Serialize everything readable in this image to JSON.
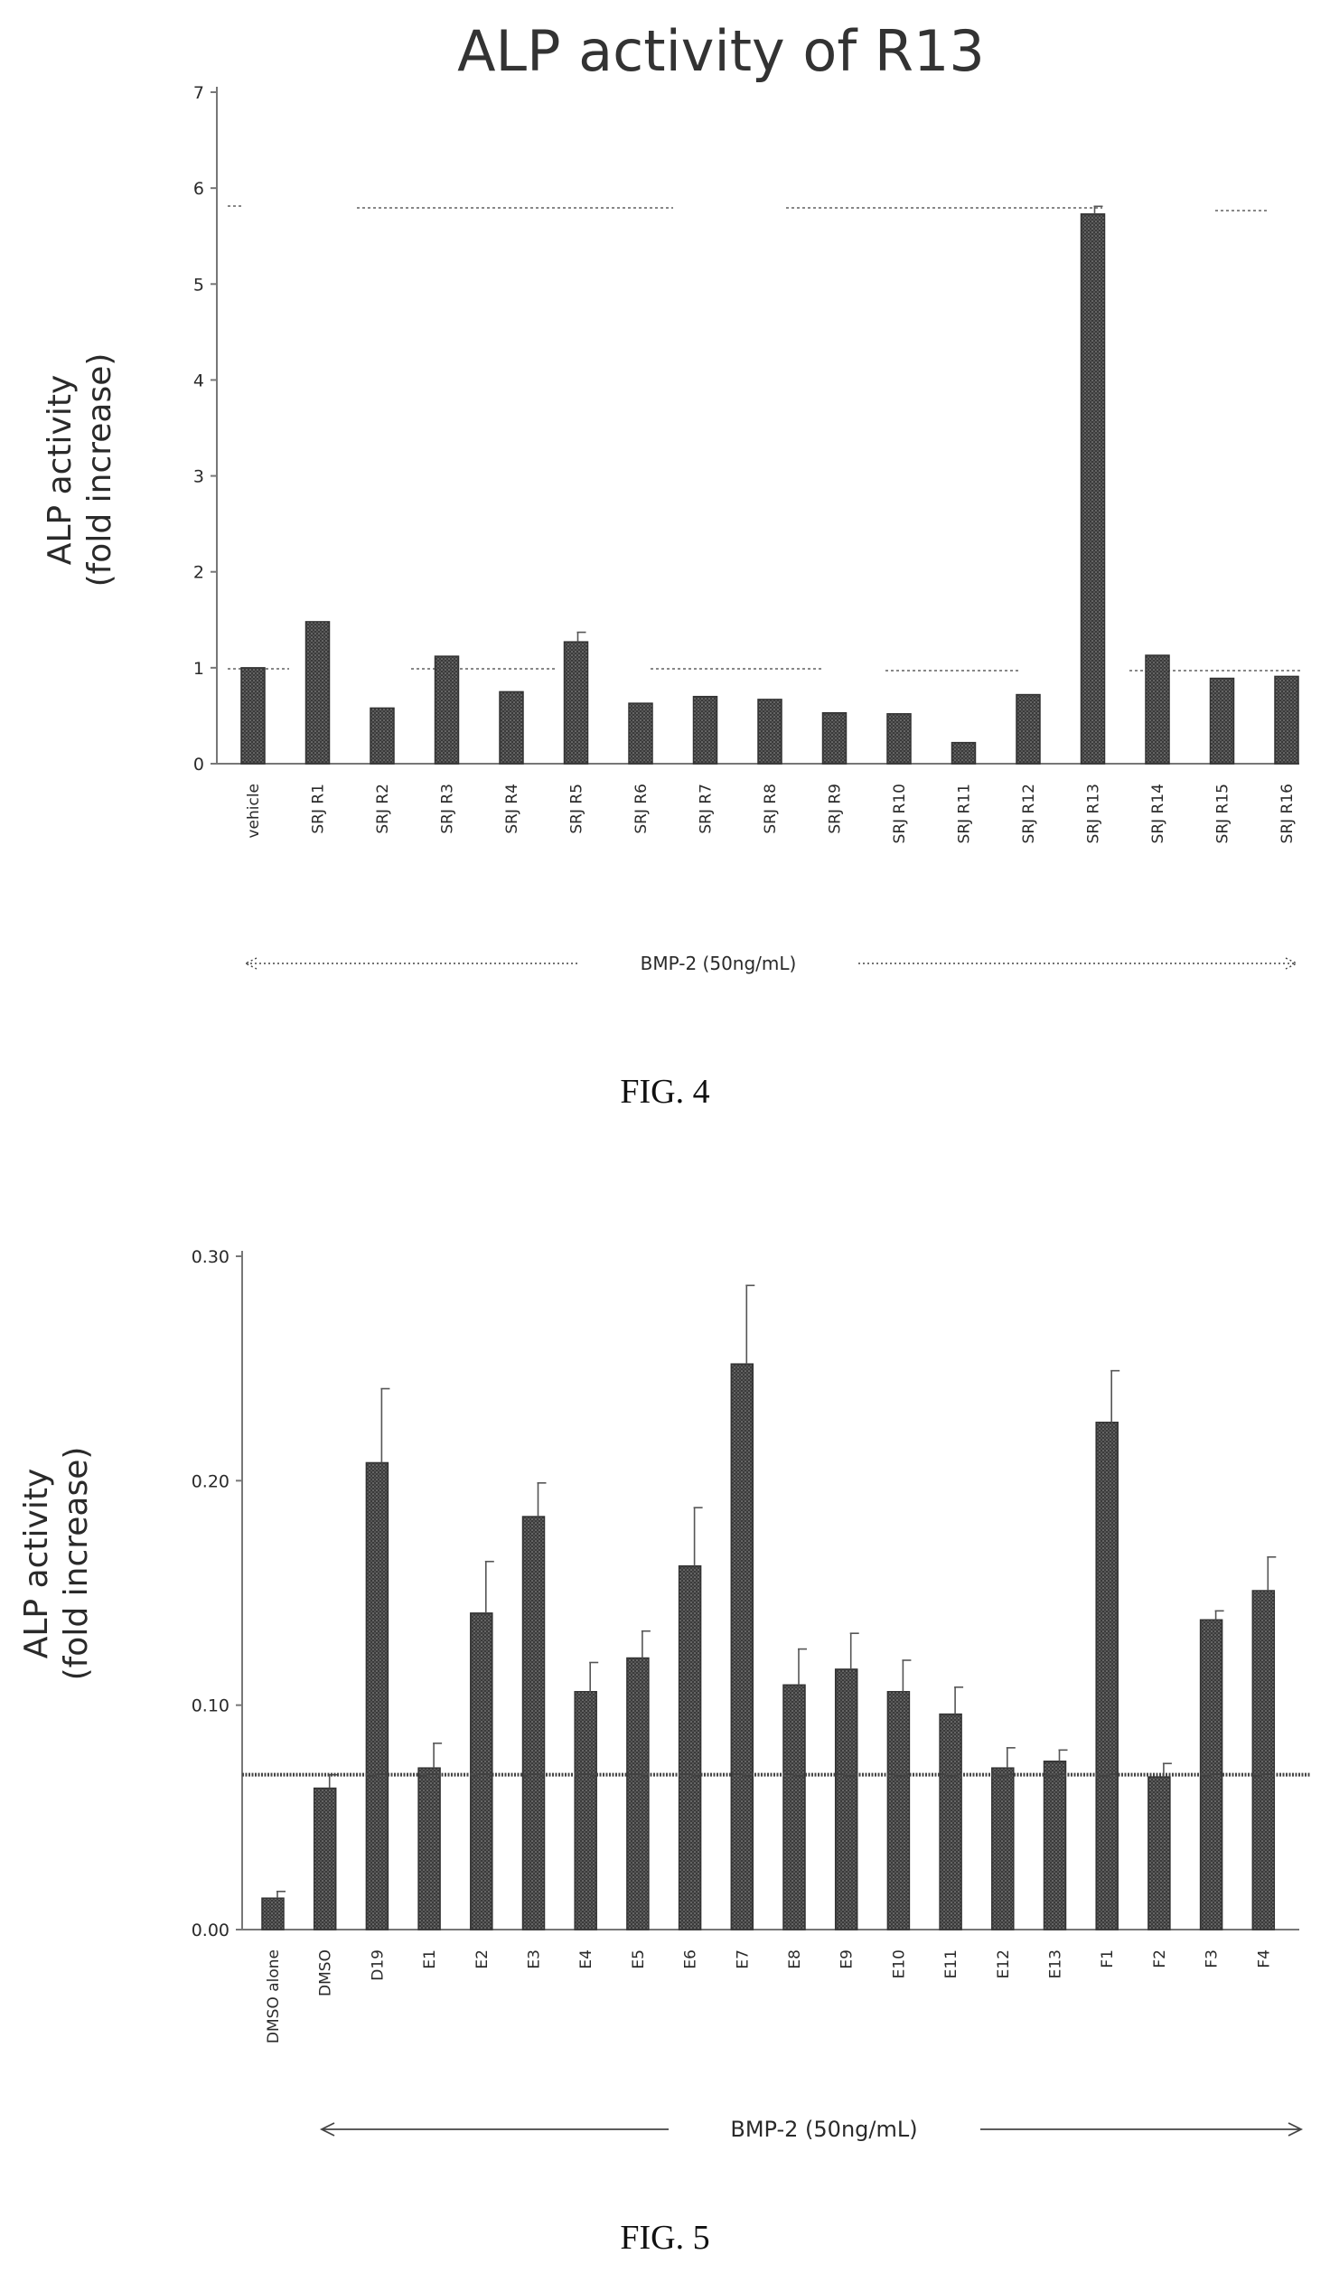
{
  "chart_data": [
    {
      "type": "bar",
      "title": "ALP activity of R13",
      "ylabel_line1": "ALP activity",
      "ylabel_line2": "(fold increase)",
      "yticks": [
        "0",
        "1",
        "2",
        "3",
        "4",
        "5",
        "6",
        "7"
      ],
      "ylim": [
        0,
        7
      ],
      "categories": [
        "vehicle",
        "SRJ R1",
        "SRJ R2",
        "SRJ R3",
        "SRJ R4",
        "SRJ R5",
        "SRJ R6",
        "SRJ R7",
        "SRJ R8",
        "SRJ R9",
        "SRJ R10",
        "SRJ R11",
        "SRJ R12",
        "SRJ R13",
        "SRJ R14",
        "SRJ R15",
        "SRJ R16"
      ],
      "values": [
        1.0,
        1.48,
        0.58,
        1.12,
        0.75,
        1.27,
        0.63,
        0.7,
        0.67,
        0.53,
        0.52,
        0.22,
        0.72,
        5.73,
        1.13,
        0.89,
        0.91
      ],
      "errors": [
        0,
        0,
        0,
        0,
        0,
        0.1,
        0,
        0,
        0,
        0,
        0,
        0,
        0,
        0.08,
        0,
        0,
        0
      ],
      "annotation": "BMP-2 (50ng/mL)",
      "caption": "FIG. 4"
    },
    {
      "type": "bar",
      "title": "",
      "ylabel_line1": "ALP activity",
      "ylabel_line2": "(fold increase)",
      "yticks": [
        "0.00",
        "0.10",
        "0.20",
        "0.30"
      ],
      "ylim": [
        0,
        0.3
      ],
      "categories": [
        "DMSO alone",
        "DMSO",
        "D19",
        "E1",
        "E2",
        "E3",
        "E4",
        "E5",
        "E6",
        "E7",
        "E8",
        "E9",
        "E10",
        "E11",
        "E12",
        "E13",
        "F1",
        "F2",
        "F3",
        "F4"
      ],
      "values": [
        0.014,
        0.063,
        0.208,
        0.072,
        0.141,
        0.184,
        0.106,
        0.121,
        0.162,
        0.252,
        0.109,
        0.116,
        0.106,
        0.096,
        0.072,
        0.075,
        0.226,
        0.068,
        0.138,
        0.151
      ],
      "errors": [
        0.003,
        0.006,
        0.033,
        0.011,
        0.023,
        0.015,
        0.013,
        0.012,
        0.026,
        0.035,
        0.016,
        0.016,
        0.014,
        0.012,
        0.009,
        0.005,
        0.023,
        0.006,
        0.004,
        0.015
      ],
      "reference_line": 0.069,
      "annotation": "BMP-2 (50ng/mL)",
      "caption": "FIG. 5"
    }
  ]
}
